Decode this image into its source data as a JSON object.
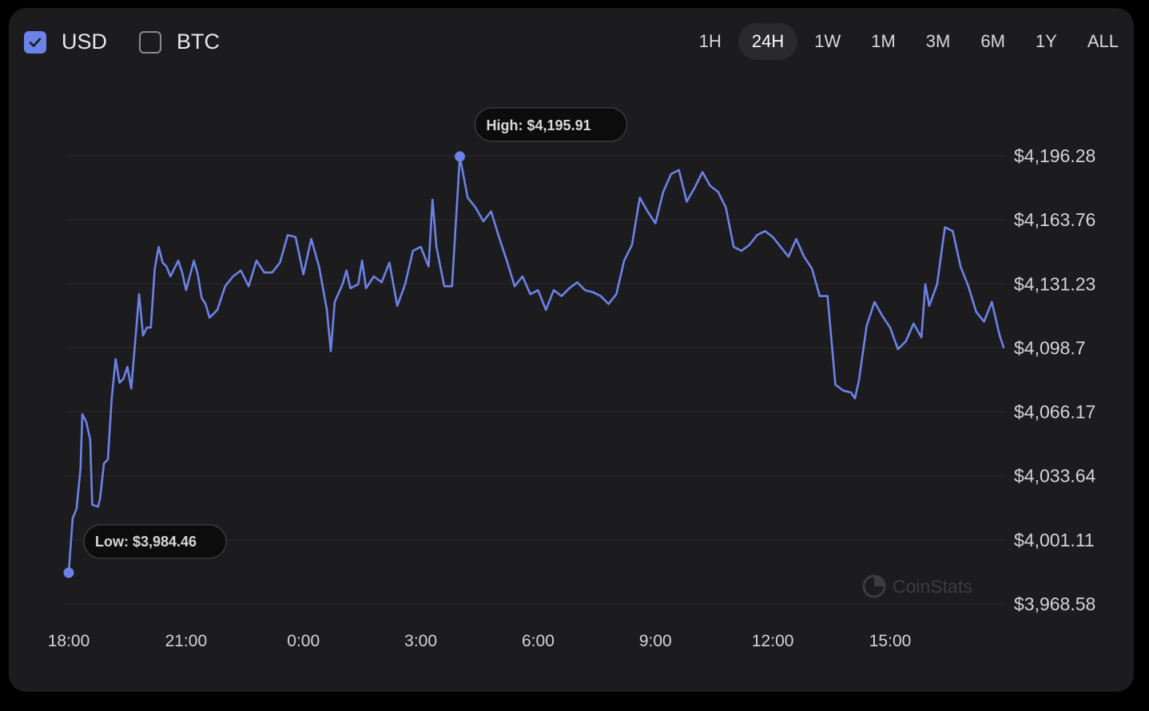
{
  "currency_toggles": [
    {
      "label": "USD",
      "checked": true
    },
    {
      "label": "BTC",
      "checked": false
    }
  ],
  "time_ranges": [
    "1H",
    "24H",
    "1W",
    "1M",
    "3M",
    "6M",
    "1Y",
    "ALL"
  ],
  "active_range": "24H",
  "colors": {
    "line": "#6d82e8",
    "background": "#1c1c1e",
    "grid": "#2a2a2d"
  },
  "watermark": {
    "icon": "coinstats-logo-icon",
    "text": "CoinStats"
  },
  "chart_data": {
    "type": "line",
    "title": "",
    "xlabel": "",
    "ylabel": "",
    "x_unit": "hour",
    "x_tick_labels": [
      {
        "label": "18:00",
        "hour": 18
      },
      {
        "label": "21:00",
        "hour": 21
      },
      {
        "label": "0:00",
        "hour": 24
      },
      {
        "label": "3:00",
        "hour": 27
      },
      {
        "label": "6:00",
        "hour": 30
      },
      {
        "label": "9:00",
        "hour": 33
      },
      {
        "label": "12:00",
        "hour": 36
      },
      {
        "label": "15:00",
        "hour": 39
      }
    ],
    "y_tick_labels": [
      "$4,196.28",
      "$4,163.76",
      "$4,131.23",
      "$4,098.7",
      "$4,066.17",
      "$4,033.64",
      "$4,001.11",
      "$3,968.58"
    ],
    "y_ticks": [
      4196.28,
      4163.76,
      4131.23,
      4098.7,
      4066.17,
      4033.64,
      4001.11,
      3968.58
    ],
    "ylim": [
      3968.58,
      4196.28
    ],
    "xlim": [
      18,
      41.9
    ],
    "grid": true,
    "y_axis_position": "right",
    "high": {
      "label": "High: $4,195.91",
      "value": 4195.91,
      "hour": 28.0
    },
    "low": {
      "label": "Low: $3,984.46",
      "value": 3984.46,
      "hour": 18.0
    },
    "series": [
      {
        "points": [
          [
            18.0,
            3984.5
          ],
          [
            18.1,
            4012
          ],
          [
            18.2,
            4017
          ],
          [
            18.3,
            4037
          ],
          [
            18.35,
            4065
          ],
          [
            18.45,
            4061
          ],
          [
            18.55,
            4052
          ],
          [
            18.6,
            4019
          ],
          [
            18.75,
            4018
          ],
          [
            18.8,
            4022
          ],
          [
            18.9,
            4040
          ],
          [
            19.0,
            4042
          ],
          [
            19.1,
            4073
          ],
          [
            19.2,
            4093
          ],
          [
            19.3,
            4081
          ],
          [
            19.4,
            4083
          ],
          [
            19.5,
            4089
          ],
          [
            19.6,
            4078
          ],
          [
            19.7,
            4102
          ],
          [
            19.8,
            4126
          ],
          [
            19.9,
            4105
          ],
          [
            20.0,
            4109
          ],
          [
            20.1,
            4109
          ],
          [
            20.2,
            4139
          ],
          [
            20.3,
            4150
          ],
          [
            20.4,
            4142
          ],
          [
            20.5,
            4140
          ],
          [
            20.6,
            4135
          ],
          [
            20.8,
            4143
          ],
          [
            20.9,
            4137
          ],
          [
            21.0,
            4128
          ],
          [
            21.2,
            4143
          ],
          [
            21.3,
            4136
          ],
          [
            21.4,
            4124
          ],
          [
            21.5,
            4121
          ],
          [
            21.6,
            4114
          ],
          [
            21.8,
            4118
          ],
          [
            22.0,
            4130
          ],
          [
            22.2,
            4135
          ],
          [
            22.4,
            4138
          ],
          [
            22.6,
            4130
          ],
          [
            22.8,
            4143
          ],
          [
            23.0,
            4137
          ],
          [
            23.2,
            4137
          ],
          [
            23.4,
            4142
          ],
          [
            23.6,
            4156
          ],
          [
            23.8,
            4155
          ],
          [
            24.0,
            4136
          ],
          [
            24.2,
            4154
          ],
          [
            24.4,
            4140
          ],
          [
            24.6,
            4118
          ],
          [
            24.7,
            4097
          ],
          [
            24.8,
            4122
          ],
          [
            25.0,
            4131
          ],
          [
            25.1,
            4138
          ],
          [
            25.2,
            4129
          ],
          [
            25.4,
            4131
          ],
          [
            25.5,
            4143
          ],
          [
            25.6,
            4129
          ],
          [
            25.8,
            4135
          ],
          [
            26.0,
            4132
          ],
          [
            26.2,
            4142
          ],
          [
            26.4,
            4120
          ],
          [
            26.6,
            4131
          ],
          [
            26.8,
            4148
          ],
          [
            27.0,
            4150
          ],
          [
            27.2,
            4140
          ],
          [
            27.3,
            4174
          ],
          [
            27.4,
            4150
          ],
          [
            27.6,
            4130
          ],
          [
            27.8,
            4130
          ],
          [
            28.0,
            4195.9
          ],
          [
            28.2,
            4175
          ],
          [
            28.4,
            4170
          ],
          [
            28.6,
            4163
          ],
          [
            28.8,
            4168
          ],
          [
            29.0,
            4155
          ],
          [
            29.2,
            4143
          ],
          [
            29.4,
            4130
          ],
          [
            29.6,
            4135
          ],
          [
            29.8,
            4126
          ],
          [
            30.0,
            4128
          ],
          [
            30.2,
            4118
          ],
          [
            30.4,
            4128
          ],
          [
            30.6,
            4125
          ],
          [
            30.8,
            4129
          ],
          [
            31.0,
            4132
          ],
          [
            31.2,
            4128
          ],
          [
            31.4,
            4127
          ],
          [
            31.6,
            4125
          ],
          [
            31.8,
            4121
          ],
          [
            32.0,
            4126
          ],
          [
            32.2,
            4143
          ],
          [
            32.4,
            4151
          ],
          [
            32.6,
            4175
          ],
          [
            32.8,
            4168
          ],
          [
            33.0,
            4162
          ],
          [
            33.2,
            4178
          ],
          [
            33.4,
            4187
          ],
          [
            33.6,
            4189
          ],
          [
            33.8,
            4173
          ],
          [
            34.0,
            4180
          ],
          [
            34.2,
            4188
          ],
          [
            34.4,
            4181
          ],
          [
            34.6,
            4178
          ],
          [
            34.8,
            4170
          ],
          [
            35.0,
            4150
          ],
          [
            35.2,
            4148
          ],
          [
            35.4,
            4151
          ],
          [
            35.6,
            4156
          ],
          [
            35.8,
            4158
          ],
          [
            36.0,
            4155
          ],
          [
            36.2,
            4150
          ],
          [
            36.4,
            4145
          ],
          [
            36.6,
            4154
          ],
          [
            36.8,
            4145
          ],
          [
            37.0,
            4139
          ],
          [
            37.2,
            4125
          ],
          [
            37.4,
            4125
          ],
          [
            37.6,
            4080
          ],
          [
            37.8,
            4077
          ],
          [
            38.0,
            4076
          ],
          [
            38.1,
            4073
          ],
          [
            38.2,
            4082
          ],
          [
            38.4,
            4110
          ],
          [
            38.6,
            4122
          ],
          [
            38.8,
            4115
          ],
          [
            39.0,
            4109
          ],
          [
            39.2,
            4098
          ],
          [
            39.4,
            4102
          ],
          [
            39.6,
            4111
          ],
          [
            39.8,
            4104
          ],
          [
            39.9,
            4131
          ],
          [
            40.0,
            4120
          ],
          [
            40.2,
            4131
          ],
          [
            40.4,
            4160
          ],
          [
            40.6,
            4158
          ],
          [
            40.8,
            4140
          ],
          [
            41.0,
            4130
          ],
          [
            41.2,
            4117
          ],
          [
            41.4,
            4112
          ],
          [
            41.6,
            4122
          ],
          [
            41.8,
            4105
          ],
          [
            41.9,
            4099
          ]
        ]
      }
    ]
  }
}
